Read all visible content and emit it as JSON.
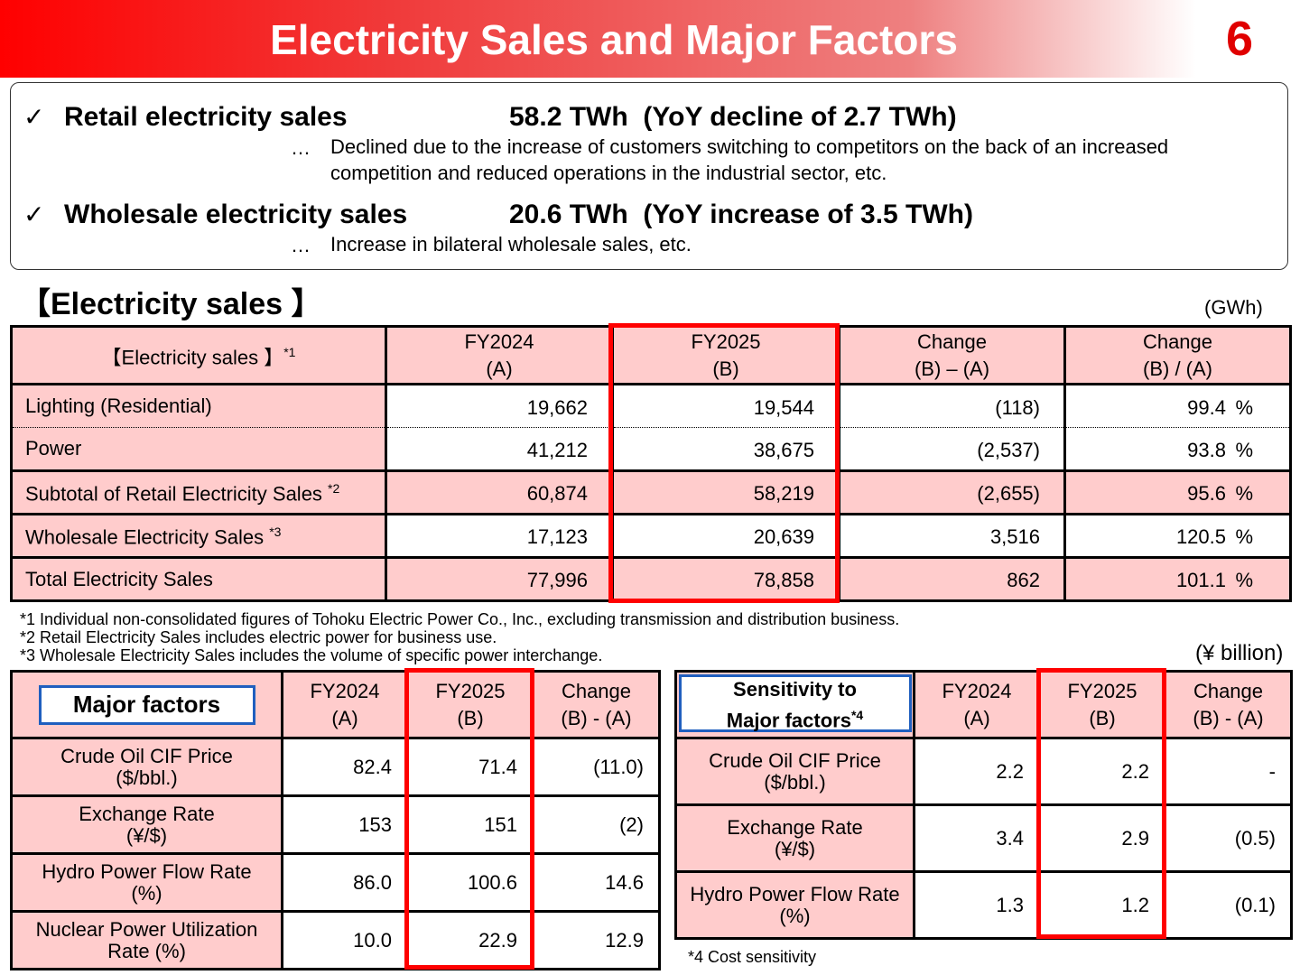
{
  "header": {
    "title": "Electricity Sales and Major Factors",
    "page_number": "6"
  },
  "summary": {
    "check_glyph": "✓",
    "dots": "…",
    "items": [
      {
        "label": "Retail electricity sales",
        "value": "58.2 TWh  (YoY decline of 2.7 TWh)",
        "note": "Declined due to the increase of customers switching to competitors on the back of an increased competition and reduced operations in the industrial sector, etc."
      },
      {
        "label": "Wholesale electricity sales",
        "value": "20.6 TWh  (YoY increase of 3.5 TWh)",
        "note": "Increase in bilateral wholesale sales, etc."
      }
    ]
  },
  "sales_section": {
    "title": "【Electricity sales 】",
    "unit": "(GWh)",
    "corner_label": "【Electricity sales 】",
    "corner_sup": "*1",
    "headers": [
      {
        "l1": "FY2024",
        "l2": "(A)"
      },
      {
        "l1": "FY2025",
        "l2": "(B)"
      },
      {
        "l1": "Change",
        "l2": "(B) – (A)"
      },
      {
        "l1": "Change",
        "l2": "(B) / (A)"
      }
    ],
    "pct_sign": "%",
    "rows": [
      {
        "label": "Lighting (Residential)",
        "sup": "",
        "fy2024": "19,662",
        "fy2025": "19,544",
        "diff": "(118)",
        "ratio": "99.4"
      },
      {
        "label": "Power",
        "sup": "",
        "fy2024": "41,212",
        "fy2025": "38,675",
        "diff": "(2,537)",
        "ratio": "93.8"
      },
      {
        "label": "Subtotal of Retail Electricity Sales ",
        "sup": "*2",
        "fy2024": "60,874",
        "fy2025": "58,219",
        "diff": "(2,655)",
        "ratio": "95.6"
      },
      {
        "label": "Wholesale Electricity Sales ",
        "sup": "*3",
        "fy2024": "17,123",
        "fy2025": "20,639",
        "diff": "3,516",
        "ratio": "120.5"
      },
      {
        "label": "Total Electricity Sales",
        "sup": "",
        "fy2024": "77,996",
        "fy2025": "78,858",
        "diff": "862",
        "ratio": "101.1"
      }
    ],
    "footnotes": [
      "*1 Individual non-consolidated figures of Tohoku Electric Power Co., Inc., excluding transmission and distribution business.",
      "*2 Retail Electricity Sales includes electric power for business use.",
      "*3 Wholesale Electricity Sales includes the volume of specific power interchange."
    ]
  },
  "factors": {
    "unit": "(¥ billion)",
    "major": {
      "box_label": "Major factors",
      "headers": [
        {
          "l1": "FY2024",
          "l2": "(A)"
        },
        {
          "l1": "FY2025",
          "l2": "(B)"
        },
        {
          "l1": "Change",
          "l2": "(B) - (A)"
        }
      ],
      "rows": [
        {
          "l1": "Crude Oil CIF Price",
          "l2": "($/bbl.)",
          "a": "82.4",
          "b": "71.4",
          "c": "(11.0)"
        },
        {
          "l1": "Exchange Rate",
          "l2": "(¥/$)",
          "a": "153",
          "b": "151",
          "c": "(2)"
        },
        {
          "l1": "Hydro Power Flow Rate",
          "l2": "(%)",
          "a": "86.0",
          "b": "100.6",
          "c": "14.6"
        },
        {
          "l1": "Nuclear Power Utilization",
          "l2": "Rate (%)",
          "a": "10.0",
          "b": "22.9",
          "c": "12.9"
        }
      ]
    },
    "sensitivity": {
      "box_l1": "Sensitivity to",
      "box_l2": "Major factors",
      "box_sup": "*4",
      "headers": [
        {
          "l1": "FY2024",
          "l2": "(A)"
        },
        {
          "l1": "FY2025",
          "l2": "(B)"
        },
        {
          "l1": "Change",
          "l2": "(B) - (A)"
        }
      ],
      "rows": [
        {
          "l1": "Crude Oil CIF Price",
          "l2": "($/bbl.)",
          "a": "2.2",
          "b": "2.2",
          "c": "-"
        },
        {
          "l1": "Exchange Rate",
          "l2": "(¥/$)",
          "a": "3.4",
          "b": "2.9",
          "c": "(0.5)"
        },
        {
          "l1": "Hydro Power Flow Rate",
          "l2": "(%)",
          "a": "1.3",
          "b": "1.2",
          "c": "(0.1)"
        }
      ],
      "footnote": "*4 Cost sensitivity"
    }
  },
  "colors": {
    "header_red": "#ff0000",
    "table_pink": "#ffcccc",
    "highlight_red": "#ff0000",
    "label_box_blue": "#1f5fbf"
  }
}
